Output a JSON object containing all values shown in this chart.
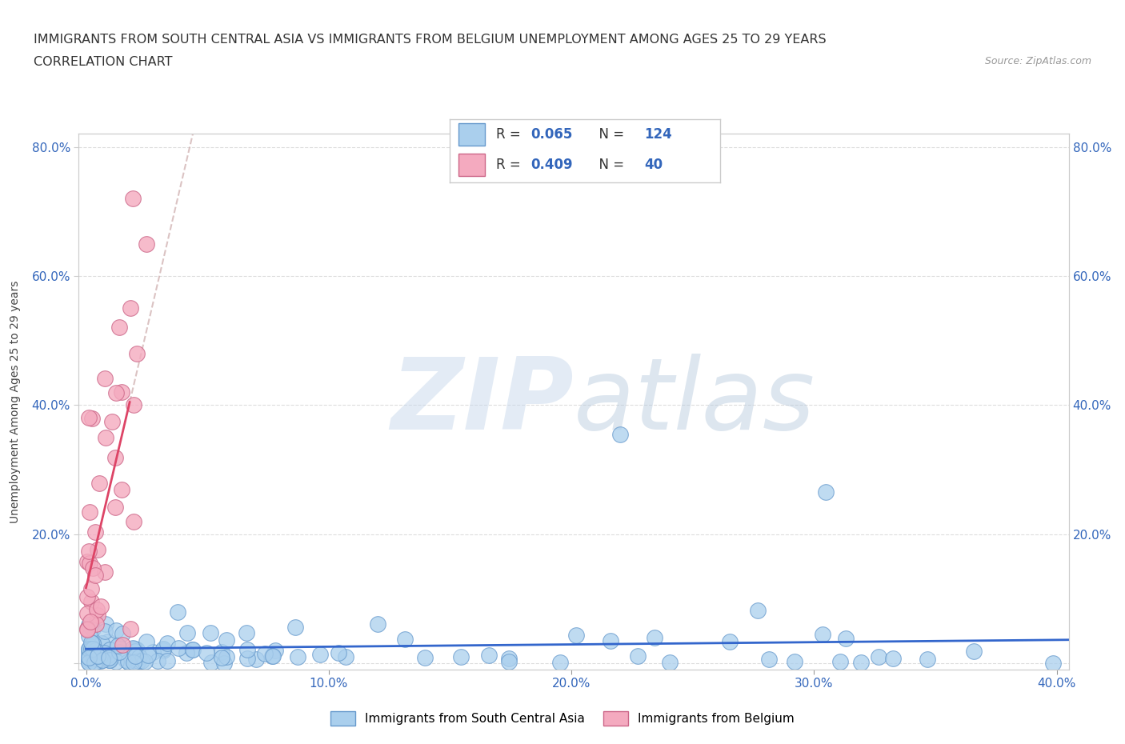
{
  "title_line1": "IMMIGRANTS FROM SOUTH CENTRAL ASIA VS IMMIGRANTS FROM BELGIUM UNEMPLOYMENT AMONG AGES 25 TO 29 YEARS",
  "title_line2": "CORRELATION CHART",
  "source_text": "Source: ZipAtlas.com",
  "ylabel": "Unemployment Among Ages 25 to 29 years",
  "xlim": [
    -0.003,
    0.405
  ],
  "ylim": [
    -0.01,
    0.82
  ],
  "xticks": [
    0.0,
    0.1,
    0.2,
    0.3,
    0.4
  ],
  "yticks": [
    0.0,
    0.2,
    0.4,
    0.6,
    0.8
  ],
  "xticklabels": [
    "0.0%",
    "10.0%",
    "20.0%",
    "30.0%",
    "40.0%"
  ],
  "ytick_left_labels": [
    "",
    "20.0%",
    "40.0%",
    "60.0%",
    "80.0%"
  ],
  "ytick_right_labels": [
    "",
    "20.0%",
    "40.0%",
    "60.0%",
    "80.0%"
  ],
  "series1_label": "Immigrants from South Central Asia",
  "series1_face_color": "#AACFED",
  "series1_edge_color": "#6699CC",
  "series1_R": 0.065,
  "series1_N": 124,
  "series2_label": "Immigrants from Belgium",
  "series2_face_color": "#F4AABF",
  "series2_edge_color": "#CC6688",
  "series2_R": 0.409,
  "series2_N": 40,
  "trend1_color": "#3366CC",
  "trend2_color": "#DD4466",
  "trend2_dashed_color": "#CCAAAA",
  "background_color": "#FFFFFF",
  "grid_color": "#DDDDDD",
  "watermark_zip_color": "#C5D8EE",
  "watermark_atlas_color": "#B8CCDD",
  "title_fontsize": 11.5,
  "axis_label_fontsize": 10,
  "tick_fontsize": 11,
  "legend_fontsize": 12,
  "seed": 99
}
